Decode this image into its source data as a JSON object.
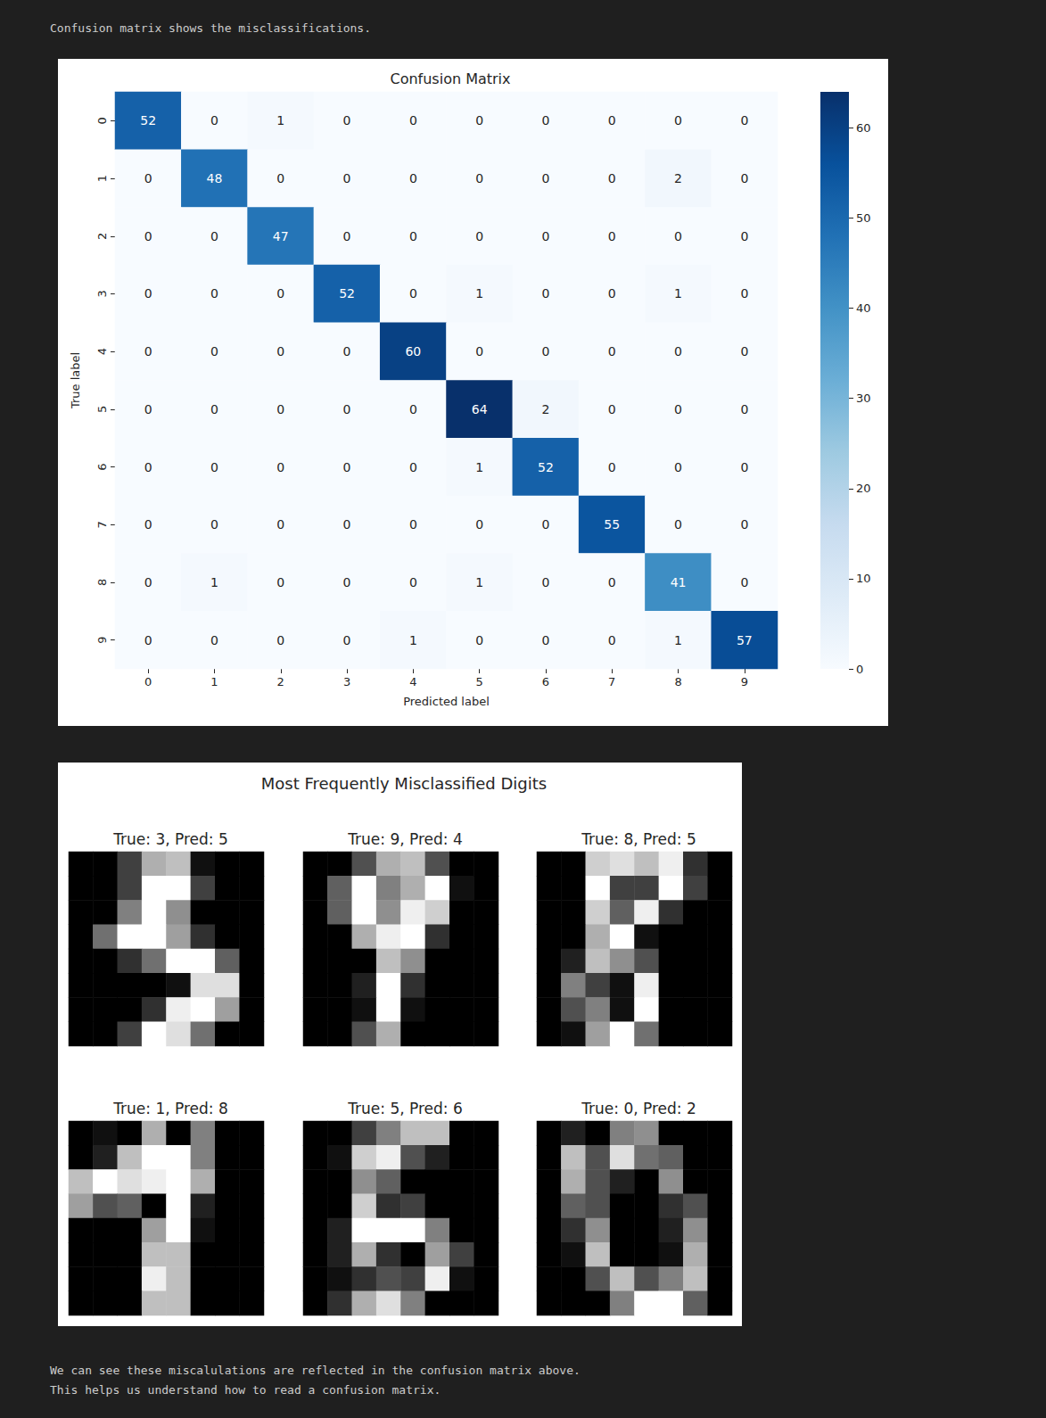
{
  "notebook": {
    "text_before": "Confusion matrix shows the misclassifications.",
    "text_after": [
      "We can see these miscalulations are reflected in the confusion matrix above.",
      "This helps us understand how to read a confusion matrix."
    ]
  },
  "chart_data": [
    {
      "type": "heatmap",
      "title": "Confusion Matrix",
      "xlabel": "Predicted label",
      "ylabel": "True label",
      "x_categories": [
        0,
        1,
        2,
        3,
        4,
        5,
        6,
        7,
        8,
        9
      ],
      "y_categories": [
        0,
        1,
        2,
        3,
        4,
        5,
        6,
        7,
        8,
        9
      ],
      "cells": [
        [
          52,
          0,
          1,
          0,
          0,
          0,
          0,
          0,
          0,
          0
        ],
        [
          0,
          48,
          0,
          0,
          0,
          0,
          0,
          0,
          2,
          0
        ],
        [
          0,
          0,
          47,
          0,
          0,
          0,
          0,
          0,
          0,
          0
        ],
        [
          0,
          0,
          0,
          52,
          0,
          1,
          0,
          0,
          1,
          0
        ],
        [
          0,
          0,
          0,
          0,
          60,
          0,
          0,
          0,
          0,
          0
        ],
        [
          0,
          0,
          0,
          0,
          0,
          64,
          2,
          0,
          0,
          0
        ],
        [
          0,
          0,
          0,
          0,
          0,
          1,
          52,
          0,
          0,
          0
        ],
        [
          0,
          0,
          0,
          0,
          0,
          0,
          0,
          55,
          0,
          0
        ],
        [
          0,
          1,
          0,
          0,
          0,
          1,
          0,
          0,
          41,
          0
        ],
        [
          0,
          0,
          0,
          0,
          1,
          0,
          0,
          0,
          1,
          57
        ]
      ],
      "data_labels": true,
      "colorbar": {
        "range": [
          0,
          64
        ],
        "ticks": [
          0,
          10,
          20,
          30,
          40,
          50,
          60
        ]
      }
    },
    {
      "type": "image_grid",
      "title": "Most Frequently Misclassified Digits",
      "tick_labels": false,
      "pixel_range": [
        0,
        16
      ],
      "images": [
        {
          "title": "True: 3, Pred: 5",
          "pixels": [
            [
              0,
              0,
              4,
              11,
              12,
              1,
              0,
              0
            ],
            [
              0,
              0,
              4,
              16,
              16,
              4,
              0,
              0
            ],
            [
              0,
              0,
              8,
              16,
              9,
              0,
              0,
              0
            ],
            [
              0,
              7,
              16,
              16,
              10,
              3,
              0,
              0
            ],
            [
              0,
              0,
              3,
              7,
              16,
              16,
              6,
              0
            ],
            [
              0,
              0,
              0,
              0,
              1,
              14,
              14,
              0
            ],
            [
              0,
              0,
              0,
              3,
              15,
              16,
              10,
              0
            ],
            [
              0,
              0,
              4,
              16,
              14,
              7,
              0,
              0
            ]
          ]
        },
        {
          "title": "True: 9, Pred: 4",
          "pixels": [
            [
              0,
              0,
              5,
              11,
              12,
              5,
              0,
              0
            ],
            [
              0,
              6,
              16,
              8,
              11,
              16,
              1,
              0
            ],
            [
              0,
              6,
              16,
              9,
              15,
              13,
              0,
              0
            ],
            [
              0,
              0,
              11,
              15,
              16,
              3,
              0,
              0
            ],
            [
              0,
              0,
              0,
              12,
              9,
              0,
              0,
              0
            ],
            [
              0,
              0,
              2,
              16,
              3,
              0,
              0,
              0
            ],
            [
              0,
              0,
              1,
              16,
              1,
              0,
              0,
              0
            ],
            [
              0,
              0,
              5,
              11,
              0,
              0,
              0,
              0
            ]
          ]
        },
        {
          "title": "True: 8, Pred: 5",
          "pixels": [
            [
              0,
              0,
              13,
              14,
              12,
              15,
              3,
              0
            ],
            [
              0,
              0,
              16,
              4,
              4,
              16,
              4,
              0
            ],
            [
              0,
              0,
              13,
              6,
              15,
              3,
              0,
              0
            ],
            [
              0,
              0,
              11,
              16,
              1,
              0,
              0,
              0
            ],
            [
              0,
              2,
              12,
              9,
              5,
              0,
              0,
              0
            ],
            [
              0,
              8,
              4,
              1,
              15,
              0,
              0,
              0
            ],
            [
              0,
              5,
              8,
              1,
              16,
              0,
              0,
              0
            ],
            [
              0,
              1,
              10,
              16,
              7,
              0,
              0,
              0
            ]
          ]
        },
        {
          "title": "True: 1, Pred: 8",
          "pixels": [
            [
              0,
              1,
              0,
              11,
              0,
              8,
              0,
              0
            ],
            [
              0,
              2,
              12,
              16,
              16,
              8,
              0,
              0
            ],
            [
              12,
              16,
              14,
              15,
              16,
              11,
              0,
              0
            ],
            [
              10,
              5,
              6,
              0,
              16,
              2,
              0,
              0
            ],
            [
              0,
              0,
              0,
              10,
              16,
              1,
              0,
              0
            ],
            [
              0,
              0,
              0,
              12,
              12,
              0,
              0,
              0
            ],
            [
              0,
              0,
              0,
              15,
              12,
              0,
              0,
              0
            ],
            [
              0,
              0,
              0,
              12,
              12,
              0,
              0,
              0
            ]
          ]
        },
        {
          "title": "True: 5, Pred: 6",
          "pixels": [
            [
              0,
              0,
              4,
              8,
              12,
              12,
              0,
              0
            ],
            [
              0,
              1,
              13,
              15,
              5,
              2,
              0,
              0
            ],
            [
              0,
              0,
              9,
              6,
              0,
              0,
              0,
              0
            ],
            [
              0,
              0,
              13,
              3,
              4,
              0,
              0,
              0
            ],
            [
              0,
              2,
              16,
              16,
              16,
              8,
              0,
              0
            ],
            [
              0,
              2,
              11,
              3,
              0,
              10,
              4,
              0
            ],
            [
              0,
              1,
              3,
              5,
              4,
              15,
              1,
              0
            ],
            [
              0,
              3,
              11,
              14,
              8,
              0,
              0,
              0
            ]
          ]
        },
        {
          "title": "True: 0, Pred: 2",
          "pixels": [
            [
              0,
              2,
              0,
              8,
              9,
              0,
              0,
              0
            ],
            [
              0,
              12,
              5,
              14,
              7,
              6,
              0,
              0
            ],
            [
              0,
              11,
              5,
              2,
              0,
              9,
              0,
              0
            ],
            [
              0,
              6,
              5,
              0,
              0,
              3,
              5,
              0
            ],
            [
              0,
              3,
              9,
              0,
              0,
              2,
              9,
              0
            ],
            [
              0,
              1,
              12,
              0,
              0,
              1,
              11,
              0
            ],
            [
              0,
              0,
              5,
              12,
              5,
              8,
              12,
              0
            ],
            [
              0,
              0,
              0,
              8,
              16,
              16,
              6,
              0
            ]
          ]
        }
      ]
    }
  ]
}
